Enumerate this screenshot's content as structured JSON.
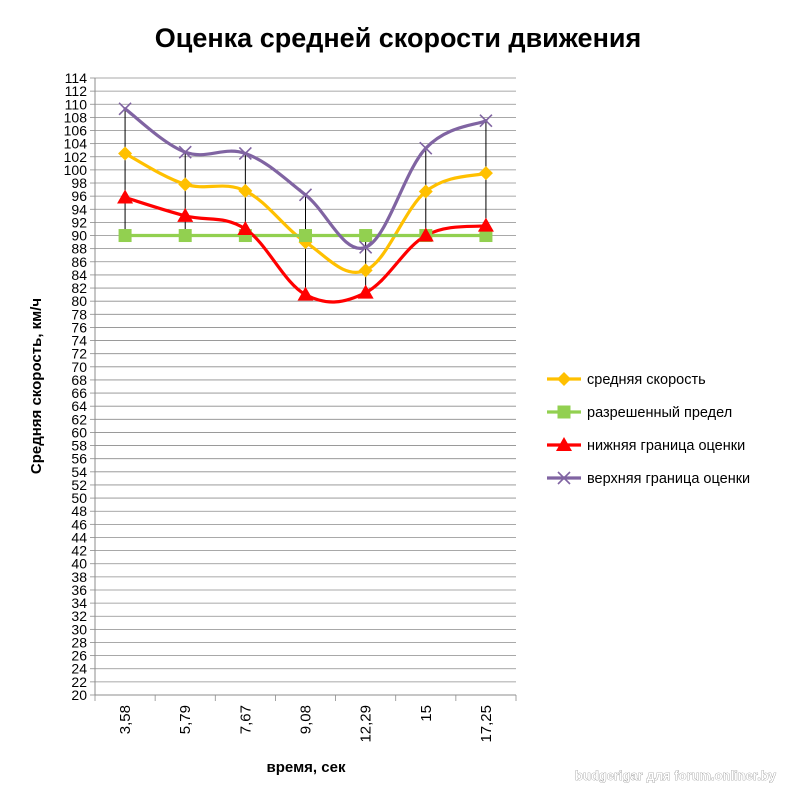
{
  "chart_data": {
    "type": "line",
    "title": "Оценка средней скорости движения",
    "xlabel": "время, сек",
    "ylabel": "Средняя скорость, км/ч",
    "categories": [
      "3,58",
      "5,79",
      "7,67",
      "9,08",
      "12,29",
      "15",
      "17,25"
    ],
    "ylim": [
      20,
      114
    ],
    "ytick_step": 2,
    "grid": true,
    "legend_position": "right",
    "series": [
      {
        "name": "средняя скорость",
        "color": "#FFC000",
        "marker": "diamond",
        "values": [
          102.5,
          97.8,
          96.8,
          89.0,
          84.7,
          96.7,
          99.5
        ]
      },
      {
        "name": "разрешенный предел",
        "color": "#92D050",
        "marker": "square",
        "values": [
          90,
          90,
          90,
          90,
          90,
          90,
          90
        ]
      },
      {
        "name": "нижняя граница оценки",
        "color": "#FF0000",
        "marker": "triangle",
        "values": [
          95.8,
          93.0,
          91.0,
          81.0,
          81.3,
          90.0,
          91.5
        ]
      },
      {
        "name": "верхняя граница оценки",
        "color": "#8064A2",
        "marker": "x",
        "values": [
          109.3,
          102.7,
          102.5,
          96.2,
          88.2,
          103.3,
          107.5
        ]
      }
    ]
  },
  "watermark": "budgerigar для forum.onliner.by"
}
